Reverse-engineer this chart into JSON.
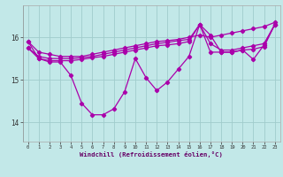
{
  "xlabel": "Windchill (Refroidissement éolien,°C)",
  "bg_color": "#c2e8e8",
  "grid_color": "#a0cccc",
  "line_color": "#aa00aa",
  "ylim": [
    13.55,
    16.75
  ],
  "yticks": [
    14,
    15,
    16
  ],
  "xticks": [
    0,
    1,
    2,
    3,
    4,
    5,
    6,
    7,
    8,
    9,
    10,
    11,
    12,
    13,
    14,
    15,
    16,
    17,
    18,
    19,
    20,
    21,
    22,
    23
  ],
  "line1": [
    15.9,
    15.65,
    15.6,
    15.55,
    15.55,
    15.55,
    15.6,
    15.65,
    15.7,
    15.75,
    15.8,
    15.85,
    15.9,
    15.92,
    15.95,
    16.0,
    16.05,
    16.0,
    16.05,
    16.1,
    16.15,
    16.2,
    16.25,
    16.35
  ],
  "line2": [
    15.75,
    15.55,
    15.5,
    15.5,
    15.5,
    15.52,
    15.55,
    15.6,
    15.65,
    15.7,
    15.75,
    15.8,
    15.85,
    15.88,
    15.92,
    15.95,
    16.3,
    15.85,
    15.7,
    15.7,
    15.75,
    15.8,
    15.85,
    16.3
  ],
  "line3": [
    15.75,
    15.5,
    15.45,
    15.45,
    15.45,
    15.48,
    15.52,
    15.55,
    15.6,
    15.65,
    15.7,
    15.75,
    15.8,
    15.82,
    15.85,
    15.9,
    16.3,
    15.65,
    15.65,
    15.65,
    15.7,
    15.72,
    15.78,
    16.3
  ],
  "line4": [
    15.9,
    15.5,
    15.42,
    15.42,
    15.1,
    14.45,
    14.18,
    14.18,
    14.32,
    14.72,
    15.5,
    15.05,
    14.75,
    14.95,
    15.25,
    15.55,
    16.3,
    16.05,
    15.65,
    15.65,
    15.7,
    15.48,
    15.82,
    16.3
  ]
}
